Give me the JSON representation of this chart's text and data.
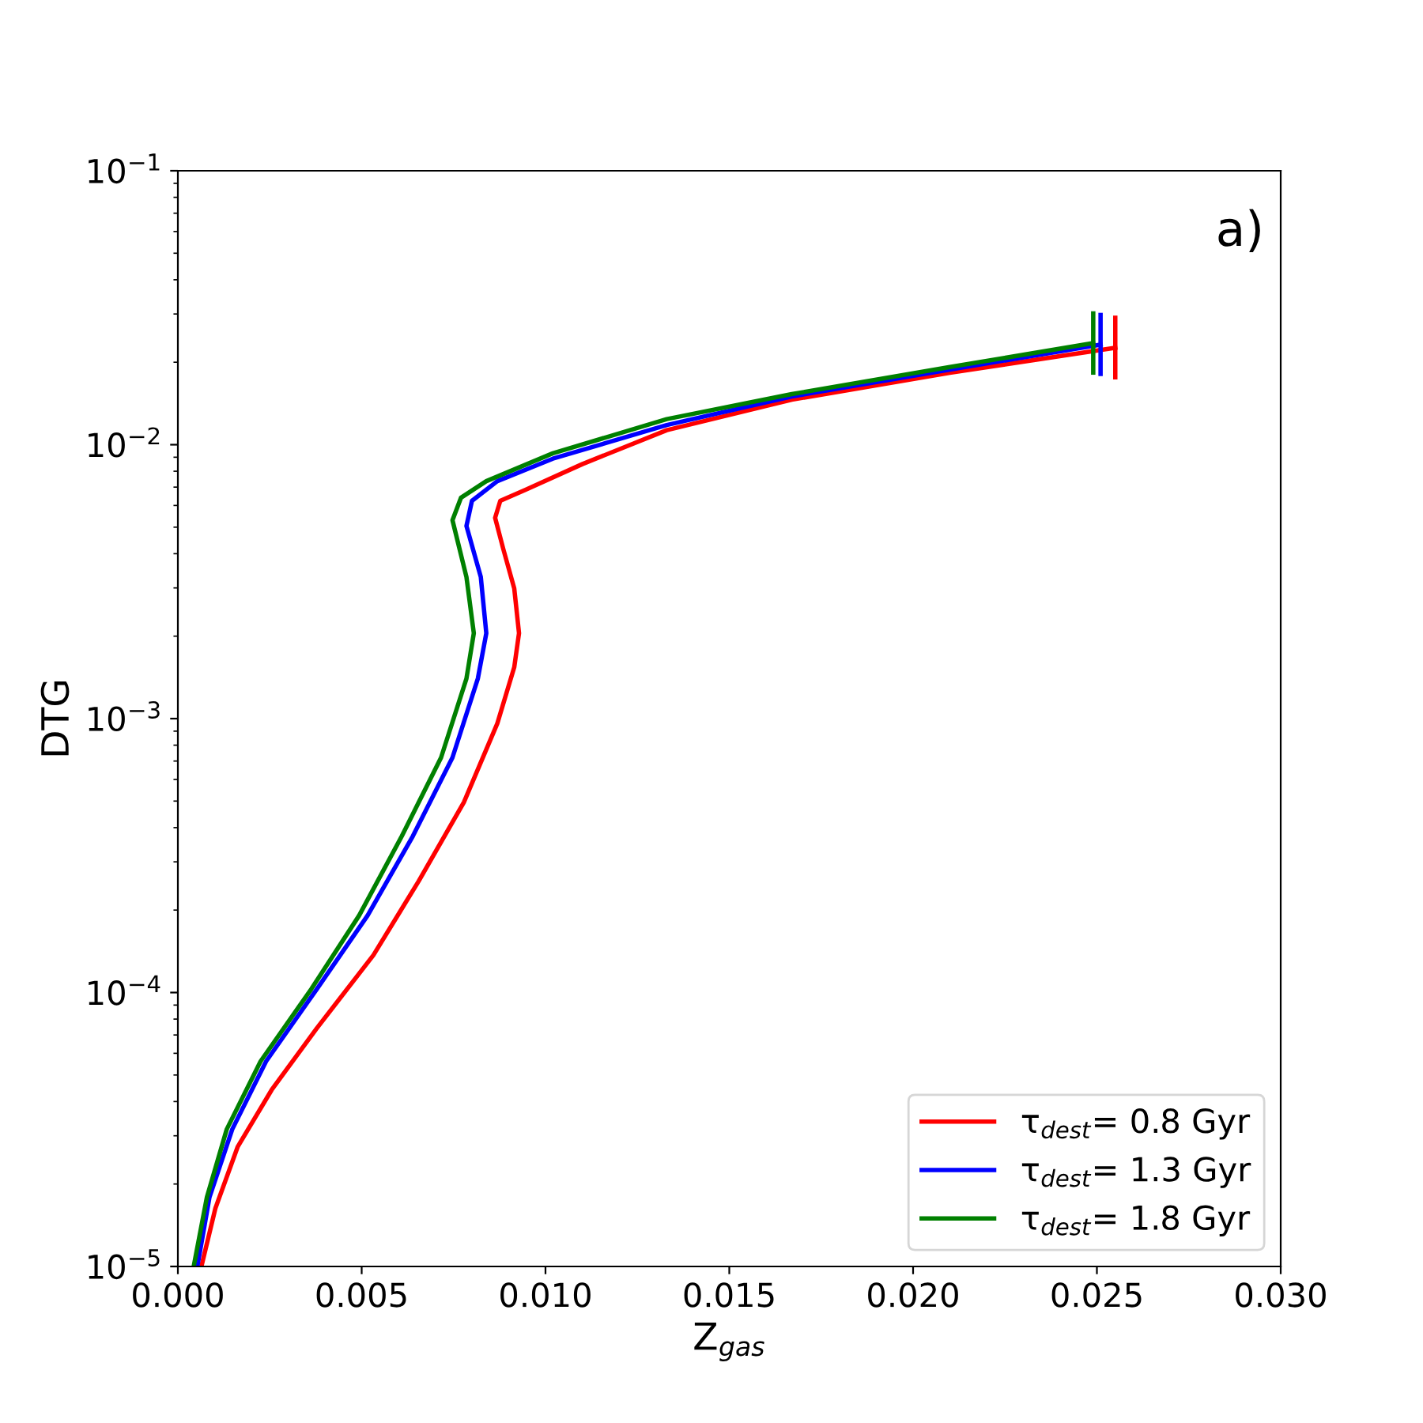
{
  "chart_data": {
    "type": "line",
    "xlabel": "Z$_{gas}$",
    "ylabel": "DTG",
    "log": "y",
    "grid": false,
    "legend": "bottom right",
    "marker": "none",
    "line_style": "solid",
    "annotations": [
      "a)"
    ],
    "xlim": [
      0.0,
      0.03
    ],
    "xticks": [
      {
        "value": 0.0,
        "label": "0.000"
      },
      {
        "value": 0.005,
        "label": "0.005"
      },
      {
        "value": 0.01,
        "label": "0.010"
      },
      {
        "value": 0.015,
        "label": "0.015"
      },
      {
        "value": 0.02,
        "label": "0.020"
      },
      {
        "value": 0.025,
        "label": "0.025"
      },
      {
        "value": 0.03,
        "label": "0.030"
      }
    ],
    "ylim": [
      1e-05,
      0.1
    ],
    "yticks": [
      {
        "value": 1e-05,
        "label": "10$^{−5}$"
      },
      {
        "value": 0.0001,
        "label": "10$^{−4}$"
      },
      {
        "value": 0.001,
        "label": "10$^{−3}$"
      },
      {
        "value": 0.01,
        "label": "10$^{−2}$"
      },
      {
        "value": 0.1,
        "label": "10$^{−1}$"
      }
    ],
    "series": [
      {
        "name": "τ$_{dest}$= 0.8 Gyr",
        "color": "#ff0000",
        "x": [
          0.00064,
          0.00102,
          0.00163,
          0.00255,
          0.00378,
          0.00532,
          0.00655,
          0.00778,
          0.00869,
          0.00915,
          0.00928,
          0.00915,
          0.00885,
          0.00863,
          0.00877,
          0.00946,
          0.011,
          0.0133,
          0.0167,
          0.021,
          0.0255
        ],
        "values": [
          1e-05,
          1.63e-05,
          2.74e-05,
          4.41e-05,
          7.41e-05,
          0.000137,
          0.000255,
          0.000495,
          0.00096,
          0.00154,
          0.00205,
          0.00299,
          0.00417,
          0.00541,
          0.00624,
          0.00685,
          0.00849,
          0.0113,
          0.0146,
          0.0183,
          0.0226
        ],
        "errors": [
          null,
          null,
          null,
          null,
          null,
          null,
          null,
          null,
          null,
          null,
          null,
          null,
          null,
          null,
          null,
          null,
          null,
          null,
          null,
          null,
          [
            0.0173,
            0.0296
          ]
        ]
      },
      {
        "name": "τ$_{dest}$= 1.3 Gyr",
        "color": "#0000ff",
        "x": [
          0.00053,
          0.00086,
          0.00148,
          0.0024,
          0.00378,
          0.00516,
          0.00639,
          0.00747,
          0.00816,
          0.00839,
          0.00824,
          0.00785,
          0.008,
          0.00869,
          0.0102,
          0.0133,
          0.0167,
          0.021,
          0.0251
        ],
        "values": [
          1e-05,
          1.79e-05,
          3.17e-05,
          5.61e-05,
          0.000103,
          0.000191,
          0.000372,
          0.000721,
          0.0014,
          0.00205,
          0.00329,
          0.00505,
          0.00624,
          0.00736,
          0.00889,
          0.0118,
          0.015,
          0.0188,
          0.0232
        ],
        "errors": [
          null,
          null,
          null,
          null,
          null,
          null,
          null,
          null,
          null,
          null,
          null,
          null,
          null,
          null,
          null,
          null,
          null,
          null,
          [
            0.0178,
            0.0303
          ]
        ]
      },
      {
        "name": "τ$_{dest}$= 1.8 Gyr",
        "color": "#008000",
        "x": [
          0.00043,
          0.00079,
          0.00133,
          0.00225,
          0.00363,
          0.00493,
          0.00609,
          0.00716,
          0.00785,
          0.00805,
          0.00785,
          0.00747,
          0.0077,
          0.00839,
          0.0102,
          0.0133,
          0.0167,
          0.021,
          0.0249
        ],
        "values": [
          1e-05,
          1.79e-05,
          3.17e-05,
          5.61e-05,
          0.000103,
          0.000191,
          0.000372,
          0.000721,
          0.0014,
          0.00205,
          0.00329,
          0.0053,
          0.0064,
          0.00736,
          0.0093,
          0.0124,
          0.0153,
          0.0192,
          0.0235
        ],
        "errors": [
          null,
          null,
          null,
          null,
          null,
          null,
          null,
          null,
          null,
          null,
          null,
          null,
          null,
          null,
          null,
          null,
          null,
          null,
          [
            0.018,
            0.0307
          ]
        ]
      }
    ]
  }
}
